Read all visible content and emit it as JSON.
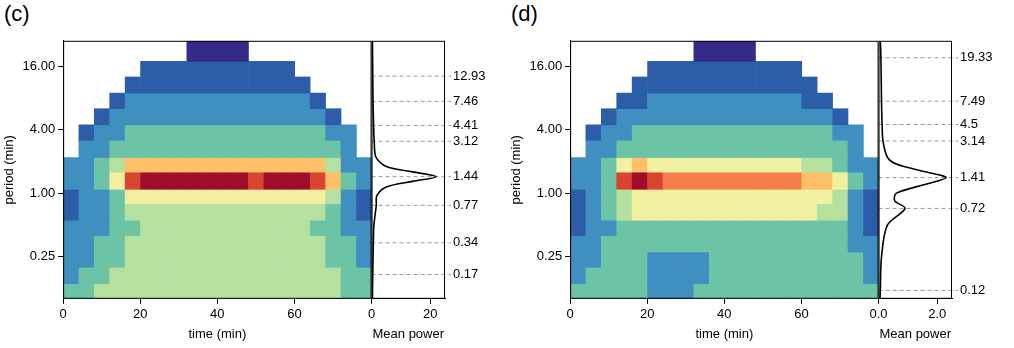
{
  "chart_data": [
    {
      "type": "heatmap",
      "title": "(c)",
      "x_label": "time (min)",
      "y_label": "period (min)",
      "log": "y",
      "grid": false,
      "xlim": [
        0,
        80
      ],
      "xticks": [
        0,
        20,
        40,
        60
      ],
      "ylim": [
        0.1,
        28
      ],
      "yticks": [
        0.25,
        {
          "value": 1,
          "label": "1.00"
        },
        {
          "value": 4,
          "label": "4.00"
        },
        {
          "value": 16,
          "label": "16.00"
        }
      ],
      "x_edges": [
        0,
        4,
        8,
        12,
        16,
        20,
        24,
        28,
        32,
        36,
        40,
        44,
        48,
        52,
        56,
        60,
        64,
        68,
        72,
        76,
        80
      ],
      "y_edges": [
        0.1,
        0.14,
        0.2,
        0.28,
        0.4,
        0.56,
        0.8,
        1.1,
        1.6,
        2.2,
        3.2,
        4.5,
        6.4,
        9,
        12.8,
        18,
        28
      ],
      "zlim": [
        0,
        9
      ],
      "cells": [
        [
          3,
          3,
          4,
          4,
          4,
          4,
          4,
          4,
          4,
          4,
          4,
          4,
          4,
          4,
          4,
          4,
          4,
          4,
          3,
          3
        ],
        [
          2,
          3,
          3,
          4,
          4,
          4,
          4,
          4,
          4,
          4,
          4,
          4,
          4,
          4,
          4,
          4,
          4,
          4,
          3,
          3
        ],
        [
          2,
          2,
          3,
          3,
          4,
          4,
          4,
          4,
          4,
          4,
          4,
          4,
          4,
          4,
          4,
          4,
          4,
          3,
          3,
          2
        ],
        [
          2,
          2,
          3,
          3,
          4,
          4,
          4,
          4,
          4,
          4,
          4,
          4,
          4,
          4,
          4,
          4,
          4,
          3,
          3,
          2
        ],
        [
          2,
          2,
          2,
          3,
          3,
          4,
          4,
          4,
          4,
          4,
          4,
          4,
          4,
          4,
          4,
          4,
          3,
          3,
          2,
          2
        ],
        [
          1,
          2,
          2,
          3,
          4,
          4,
          4,
          4,
          4,
          4,
          4,
          4,
          4,
          4,
          4,
          4,
          4,
          3,
          2,
          1
        ],
        [
          1,
          2,
          2,
          3,
          5,
          5,
          5,
          5,
          5,
          5,
          5,
          5,
          5,
          5,
          5,
          5,
          5,
          4,
          2,
          1
        ],
        [
          2,
          2,
          3,
          5,
          8,
          9,
          9,
          9,
          9,
          9,
          9,
          9,
          8,
          9,
          9,
          9,
          8,
          6,
          3,
          2
        ],
        [
          2,
          2,
          3,
          4,
          6,
          6,
          6,
          6,
          6,
          6,
          6,
          6,
          6,
          6,
          6,
          6,
          6,
          4,
          2,
          2
        ],
        [
          null,
          2,
          2,
          3,
          3,
          3,
          3,
          3,
          3,
          3,
          3,
          3,
          3,
          3,
          3,
          3,
          3,
          3,
          2,
          null
        ],
        [
          null,
          1,
          2,
          2,
          3,
          3,
          3,
          3,
          3,
          3,
          3,
          3,
          3,
          3,
          3,
          3,
          3,
          2,
          2,
          null
        ],
        [
          null,
          null,
          1,
          2,
          2,
          2,
          2,
          2,
          2,
          2,
          2,
          2,
          2,
          2,
          2,
          2,
          2,
          1,
          null,
          null
        ],
        [
          null,
          null,
          null,
          1,
          2,
          2,
          2,
          2,
          2,
          2,
          2,
          2,
          2,
          2,
          2,
          2,
          1,
          null,
          null,
          null
        ],
        [
          null,
          null,
          null,
          null,
          1,
          1,
          1,
          1,
          1,
          1,
          1,
          1,
          1,
          1,
          1,
          1,
          null,
          null,
          null,
          null
        ],
        [
          null,
          null,
          null,
          null,
          null,
          1,
          1,
          1,
          1,
          1,
          1,
          1,
          1,
          1,
          1,
          null,
          null,
          null,
          null,
          null
        ],
        [
          null,
          null,
          null,
          null,
          null,
          null,
          null,
          null,
          0,
          0,
          0,
          0,
          null,
          null,
          null,
          null,
          null,
          null,
          null,
          null
        ]
      ]
    },
    {
      "type": "line",
      "x_label": "Mean power",
      "log": "y",
      "grid": false,
      "tick_labels": "x",
      "color": "#000000",
      "xlim": [
        0,
        25
      ],
      "xticks": [
        0,
        20
      ],
      "ylim": [
        0.1,
        28
      ],
      "x": [
        0.3,
        0.4,
        0.6,
        0.8,
        1.6,
        1.8,
        5,
        14,
        22,
        14,
        5,
        1.5,
        0.9,
        0.7,
        0.5,
        0.4,
        0.3
      ],
      "y": [
        0.1,
        0.17,
        0.34,
        0.5,
        0.77,
        0.95,
        1.15,
        1.3,
        1.44,
        1.6,
        1.8,
        2.2,
        3.12,
        4.41,
        7.46,
        12.93,
        28
      ],
      "period_marks": [
        12.93,
        7.46,
        4.41,
        3.12,
        1.44,
        0.77,
        0.34,
        0.17
      ]
    },
    {
      "type": "heatmap",
      "title": "(d)",
      "x_label": "time (min)",
      "y_label": "period (min)",
      "log": "y",
      "grid": false,
      "xlim": [
        0,
        80
      ],
      "xticks": [
        0,
        20,
        40,
        60
      ],
      "ylim": [
        0.1,
        28
      ],
      "yticks": [
        0.25,
        {
          "value": 1,
          "label": "1.00"
        },
        {
          "value": 4,
          "label": "4.00"
        },
        {
          "value": 16,
          "label": "16.00"
        }
      ],
      "x_edges": [
        0,
        4,
        8,
        12,
        16,
        20,
        24,
        28,
        32,
        36,
        40,
        44,
        48,
        52,
        56,
        60,
        64,
        68,
        72,
        76,
        80
      ],
      "y_edges": [
        0.1,
        0.14,
        0.2,
        0.28,
        0.4,
        0.56,
        0.8,
        1.1,
        1.6,
        2.2,
        3.2,
        4.5,
        6.4,
        9,
        12.8,
        18,
        28
      ],
      "zlim": [
        0,
        9
      ],
      "cells": [
        [
          3,
          3,
          3,
          3,
          3,
          2,
          2,
          2,
          3,
          3,
          3,
          3,
          3,
          3,
          3,
          3,
          3,
          3,
          3,
          3
        ],
        [
          2,
          3,
          3,
          3,
          3,
          2,
          2,
          2,
          2,
          3,
          3,
          3,
          3,
          3,
          3,
          3,
          3,
          3,
          3,
          2
        ],
        [
          2,
          2,
          3,
          3,
          3,
          2,
          2,
          2,
          2,
          3,
          3,
          3,
          3,
          3,
          3,
          3,
          3,
          3,
          3,
          2
        ],
        [
          2,
          2,
          3,
          3,
          3,
          3,
          3,
          3,
          3,
          3,
          3,
          3,
          3,
          3,
          3,
          3,
          3,
          3,
          2,
          2
        ],
        [
          1,
          2,
          2,
          3,
          3,
          3,
          3,
          3,
          3,
          3,
          3,
          3,
          3,
          3,
          3,
          3,
          3,
          3,
          2,
          1
        ],
        [
          1,
          2,
          3,
          4,
          5,
          5,
          5,
          5,
          5,
          5,
          5,
          5,
          5,
          5,
          5,
          5,
          4,
          4,
          2,
          1
        ],
        [
          1,
          2,
          3,
          4,
          5,
          5,
          5,
          5,
          5,
          5,
          5,
          5,
          5,
          5,
          5,
          5,
          5,
          4,
          2,
          1
        ],
        [
          2,
          2,
          3,
          8,
          9,
          8,
          7,
          7,
          7,
          7,
          7,
          7,
          7,
          7,
          7,
          6,
          6,
          5,
          3,
          2
        ],
        [
          2,
          2,
          3,
          5,
          6,
          5,
          5,
          5,
          5,
          5,
          5,
          5,
          5,
          5,
          5,
          4,
          4,
          3,
          2,
          2
        ],
        [
          null,
          2,
          2,
          3,
          3,
          3,
          3,
          3,
          3,
          3,
          3,
          3,
          3,
          3,
          3,
          3,
          3,
          3,
          2,
          null
        ],
        [
          null,
          1,
          2,
          2,
          3,
          3,
          3,
          3,
          3,
          3,
          3,
          3,
          3,
          3,
          3,
          3,
          3,
          2,
          2,
          null
        ],
        [
          null,
          null,
          1,
          2,
          2,
          2,
          2,
          2,
          2,
          2,
          2,
          2,
          2,
          2,
          2,
          2,
          2,
          1,
          null,
          null
        ],
        [
          null,
          null,
          null,
          1,
          1,
          2,
          2,
          2,
          2,
          2,
          2,
          2,
          2,
          2,
          2,
          1,
          1,
          null,
          null,
          null
        ],
        [
          null,
          null,
          null,
          null,
          1,
          1,
          1,
          1,
          1,
          1,
          1,
          1,
          1,
          1,
          1,
          1,
          null,
          null,
          null,
          null
        ],
        [
          null,
          null,
          null,
          null,
          null,
          1,
          1,
          1,
          1,
          1,
          1,
          1,
          1,
          1,
          1,
          null,
          null,
          null,
          null,
          null
        ],
        [
          null,
          null,
          null,
          null,
          null,
          null,
          null,
          null,
          0,
          0,
          0,
          0,
          null,
          null,
          null,
          null,
          null,
          null,
          null,
          null
        ]
      ]
    },
    {
      "type": "line",
      "x_label": "Mean power",
      "log": "y",
      "grid": false,
      "tick_labels": "x",
      "color": "#000000",
      "xlim": [
        0,
        2.5
      ],
      "xticks": [
        {
          "value": 0,
          "label": "0.0"
        },
        {
          "value": 2,
          "label": "2.0"
        }
      ],
      "ylim": [
        0.1,
        28
      ],
      "x": [
        0.05,
        0.06,
        0.1,
        0.3,
        0.9,
        0.55,
        0.6,
        1.5,
        2.3,
        1.6,
        0.6,
        0.3,
        0.15,
        0.12,
        0.1,
        0.08,
        0.06
      ],
      "y": [
        0.1,
        0.12,
        0.25,
        0.5,
        0.72,
        0.85,
        1.0,
        1.2,
        1.41,
        1.6,
        1.9,
        2.2,
        3.14,
        4.5,
        7.49,
        19.33,
        28
      ],
      "period_marks": [
        19.33,
        7.49,
        4.5,
        3.14,
        1.41,
        0.72,
        0.12
      ]
    }
  ]
}
